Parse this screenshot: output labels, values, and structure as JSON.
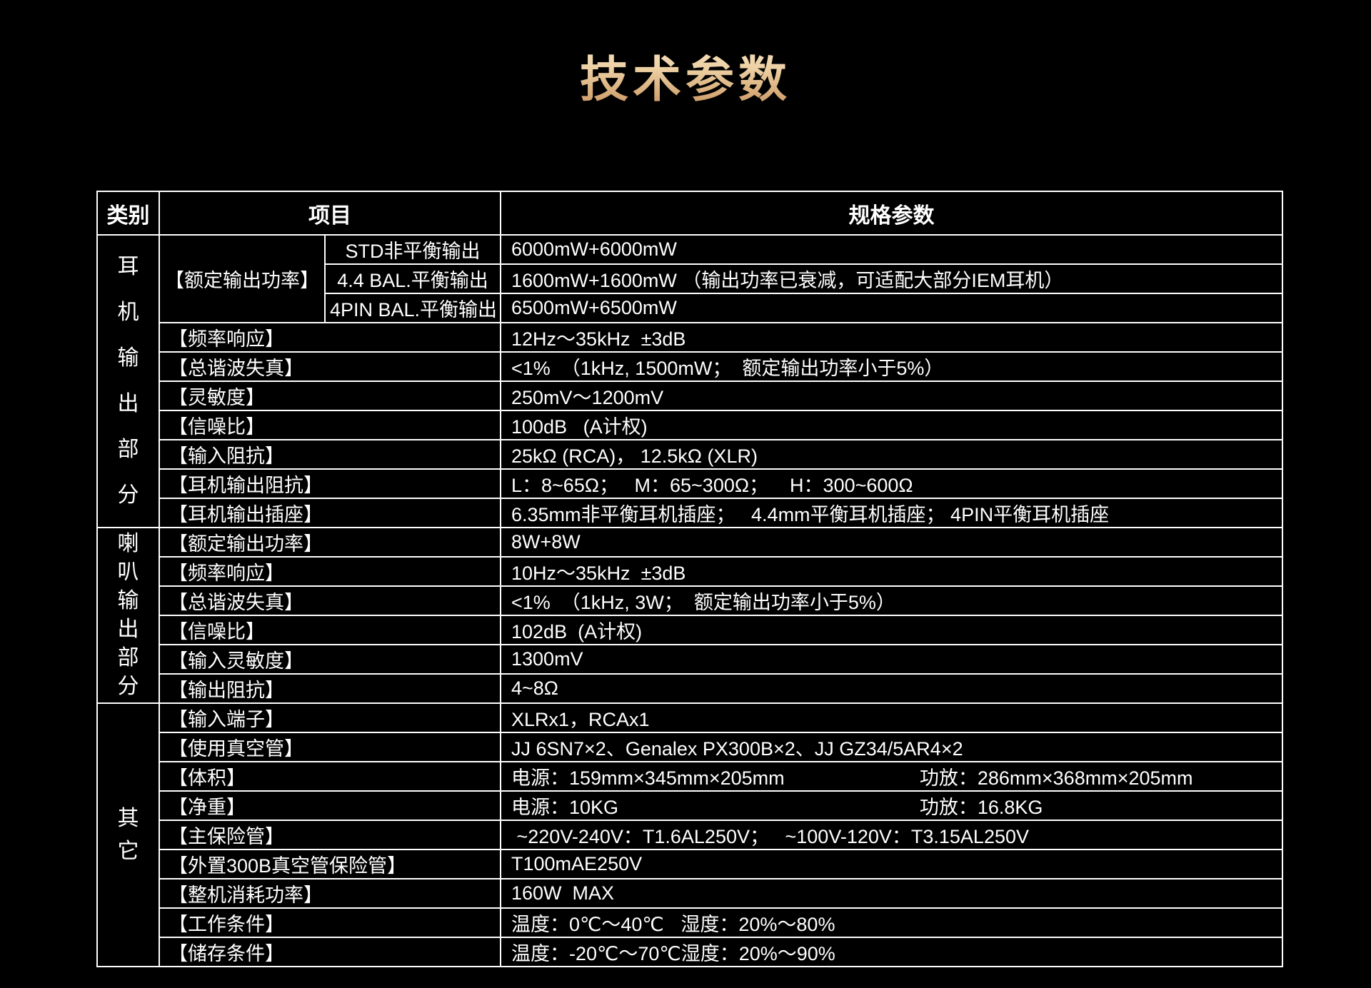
{
  "page": {
    "title": "技术参数",
    "background_color": "#000000",
    "border_color": "#ffffff",
    "text_color": "#ffffff",
    "title_gradient_top": "#f7e4c5",
    "title_gradient_bottom": "#c8925c"
  },
  "table": {
    "headers": [
      "类别",
      "项目",
      "规格参数"
    ],
    "sections": [
      {
        "category": "耳机输出部分",
        "rows": [
          {
            "item": "【额定输出功率】",
            "group_size": 3,
            "sub": "STD非平衡输出",
            "spec": "6000mW+6000mW"
          },
          {
            "sub": "4.4 BAL.平衡输出",
            "spec": "1600mW+1600mW （输出功率已衰减，可适配大部分IEM耳机）"
          },
          {
            "sub": "4PIN BAL.平衡输出",
            "spec": "6500mW+6500mW"
          },
          {
            "item": "【频率响应】",
            "spec": "12Hz～35kHz  ±3dB"
          },
          {
            "item": "【总谐波失真】",
            "spec": "<1%  （1kHz, 1500mW；  额定输出功率小于5%）"
          },
          {
            "item": "【灵敏度】",
            "spec": "250mV～1200mV"
          },
          {
            "item": "【信噪比】",
            "spec": "100dB   (A计权)"
          },
          {
            "item": "【输入阻抗】",
            "spec": "25kΩ (RCA)， 12.5kΩ (XLR)"
          },
          {
            "item": "【耳机输出阻抗】",
            "spec": "L：8~65Ω；   M：65~300Ω；    H：300~600Ω"
          },
          {
            "item": "【耳机输出插座】",
            "spec": "6.35mm非平衡耳机插座；   4.4mm平衡耳机插座； 4PIN平衡耳机插座"
          }
        ]
      },
      {
        "category": "喇叭输出部分",
        "rows": [
          {
            "item": "【额定输出功率】",
            "spec": "8W+8W"
          },
          {
            "item": "【频率响应】",
            "spec": "10Hz～35kHz  ±3dB"
          },
          {
            "item": "【总谐波失真】",
            "spec": "<1%  （1kHz, 3W；  额定输出功率小于5%）"
          },
          {
            "item": "【信噪比】",
            "spec": "102dB  (A计权)"
          },
          {
            "item": "【输入灵敏度】",
            "spec": "1300mV"
          },
          {
            "item": "【输出阻抗】",
            "spec": "4~8Ω"
          }
        ]
      },
      {
        "category": "其它",
        "rows": [
          {
            "item": "【输入端子】",
            "spec": "XLRx1，RCAx1"
          },
          {
            "item": "【使用真空管】",
            "spec": "JJ 6SN7×2、Genalex PX300B×2、JJ GZ34/5AR4×2"
          },
          {
            "item": "【体积】",
            "spec_parts": [
              "电源：159mm×345mm×205mm",
              "功放：286mm×368mm×205mm"
            ],
            "col1": "53%"
          },
          {
            "item": "【净重】",
            "spec_parts": [
              "电源：10KG",
              "功放：16.8KG"
            ],
            "col1": "53%"
          },
          {
            "item": "【主保险管】",
            "spec": " ~220V-240V：T1.6AL250V；   ~100V-120V：T3.15AL250V"
          },
          {
            "item": "【外置300B真空管保险管】",
            "spec": "T100mAE250V"
          },
          {
            "item": "【整机消耗功率】",
            "spec": "160W  MAX"
          },
          {
            "item": "【工作条件】",
            "spec_parts": [
              "温度：0℃～40℃",
              "湿度：20%～80%"
            ],
            "col1": "22%"
          },
          {
            "item": "【储存条件】",
            "spec_parts": [
              "温度：-20℃～70℃",
              "湿度：20%～90%"
            ],
            "col1": "22%"
          }
        ]
      }
    ]
  }
}
